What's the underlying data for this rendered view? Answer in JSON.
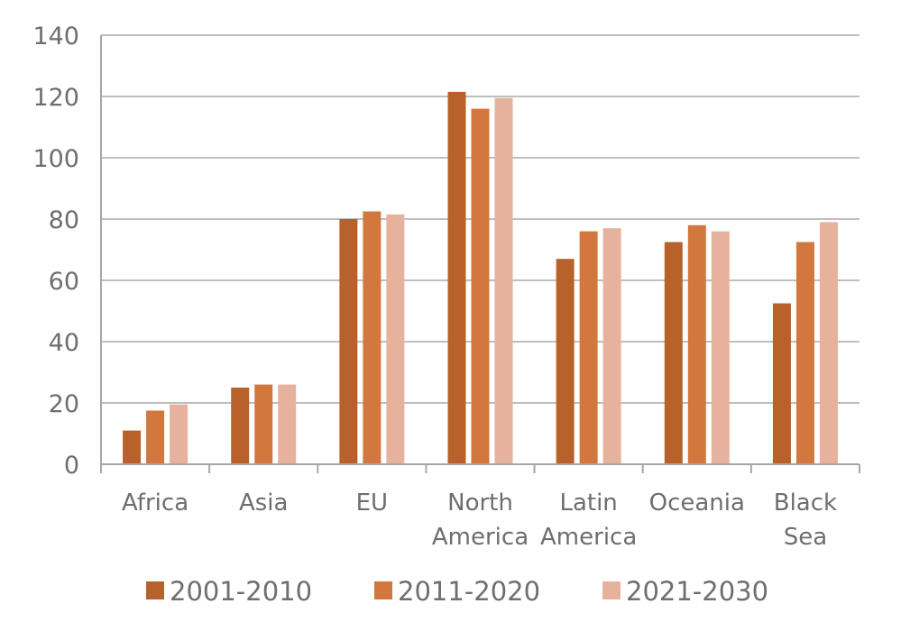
{
  "chart_data": {
    "type": "bar",
    "title": "",
    "xlabel": "",
    "ylabel": "",
    "ylim": [
      0,
      140
    ],
    "yticks": [
      0,
      20,
      40,
      60,
      80,
      100,
      120,
      140
    ],
    "grid": true,
    "legend_position": "bottom",
    "categories": [
      [
        "Africa"
      ],
      [
        "Asia"
      ],
      [
        "EU"
      ],
      [
        "North",
        "America"
      ],
      [
        "Latin",
        "America"
      ],
      [
        "Oceania"
      ],
      [
        "Black",
        "Sea"
      ]
    ],
    "series": [
      {
        "name": "2001-2010",
        "color": "#b8612a",
        "values": [
          11,
          25,
          80,
          121.5,
          67,
          72.5,
          52.5
        ]
      },
      {
        "name": "2011-2020",
        "color": "#d2773d",
        "values": [
          17.5,
          26,
          82.5,
          116,
          76,
          78,
          72.5
        ]
      },
      {
        "name": "2021-2030",
        "color": "#e6b29d",
        "values": [
          19.5,
          26,
          81.5,
          119.5,
          77,
          76,
          79
        ]
      }
    ],
    "colors": {
      "grid": "#bfbfbf",
      "axis": "#a6a6a6",
      "text": "#6e6e6e"
    }
  }
}
